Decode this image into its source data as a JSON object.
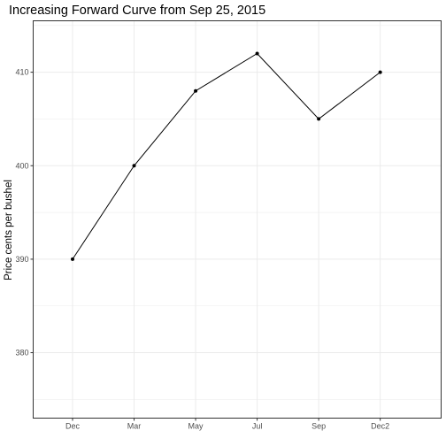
{
  "chart_data": {
    "type": "line",
    "title": "Increasing Forward Curve from Sep 25, 2015",
    "xlabel": "",
    "ylabel": "Price cents per bushel",
    "categories": [
      "Dec",
      "Mar",
      "May",
      "Jul",
      "Sep",
      "Dec2"
    ],
    "series": [
      {
        "values": [
          390,
          400,
          408,
          412,
          405,
          410
        ]
      }
    ],
    "ylim": [
      373,
      415.5
    ],
    "yticks": [
      380,
      390,
      400,
      410
    ],
    "ytick_labels": [
      "380",
      "390",
      "400",
      "410"
    ],
    "grid": true,
    "line_color": "#000000",
    "marker_color": "#000000",
    "gridline_color": "#ebebeb",
    "panel_border_color": "#333333",
    "tick_label_color": "#4d4d4d",
    "legend": "none"
  }
}
